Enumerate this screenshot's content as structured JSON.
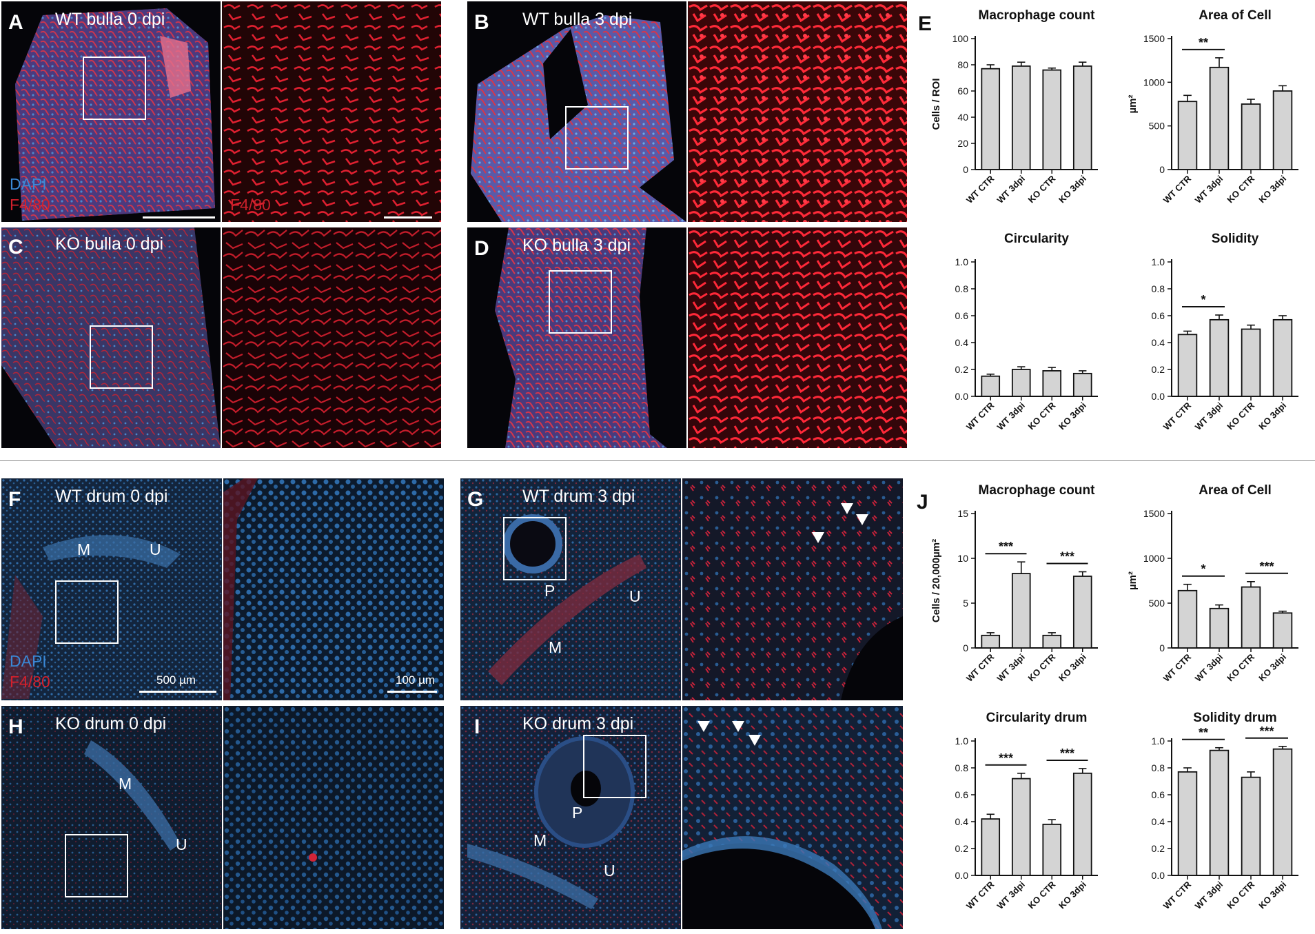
{
  "panels": [
    {
      "id": "A",
      "label": "A",
      "title": "WT bulla 0 dpi",
      "legend": true,
      "scale": true
    },
    {
      "id": "B",
      "label": "B",
      "title": "WT bulla 3 dpi"
    },
    {
      "id": "C",
      "label": "C",
      "title": "KO bulla 0 dpi"
    },
    {
      "id": "D",
      "label": "D",
      "title": "KO bulla 3 dpi"
    },
    {
      "id": "F",
      "label": "F",
      "title": "WT drum 0 dpi",
      "legend": true,
      "scale_left": "500 µm",
      "scale_right": "100 µm",
      "tags": [
        "M",
        "U"
      ]
    },
    {
      "id": "G",
      "label": "G",
      "title": "WT drum 3 dpi",
      "tags": [
        "P",
        "U",
        "M"
      ]
    },
    {
      "id": "H",
      "label": "H",
      "title": "KO drum 0 dpi",
      "tags": [
        "M",
        "U"
      ]
    },
    {
      "id": "I",
      "label": "I",
      "title": "KO drum 3 dpi",
      "tags": [
        "P",
        "M",
        "U"
      ]
    }
  ],
  "legend": {
    "dapi": "DAPI",
    "f480": "F4/80"
  },
  "side_letters": {
    "E": "E",
    "J": "J"
  },
  "colors": {
    "bar_fill": "#d4d4d4",
    "bar_stroke": "#111111",
    "dapi": "#3a88d6",
    "f480": "#d3202c"
  },
  "chart_data": [
    {
      "type": "bar",
      "panel": "E",
      "title": "Macrophage count",
      "ylabel": "Cells / ROI",
      "ylim": [
        0,
        100
      ],
      "yticks": [
        0,
        20,
        40,
        60,
        80,
        100
      ],
      "categories": [
        "WT CTR",
        "WT 3dpi",
        "KO CTR",
        "KO 3dpi"
      ],
      "values": [
        77,
        79,
        76,
        79
      ],
      "errors": [
        3,
        3,
        1.5,
        3
      ],
      "sig": []
    },
    {
      "type": "bar",
      "panel": "E",
      "title": "Area of Cell",
      "ylabel": "µm²",
      "ylim": [
        0,
        1500
      ],
      "yticks": [
        0,
        500,
        1000,
        1500
      ],
      "categories": [
        "WT CTR",
        "WT 3dpi",
        "KO CTR",
        "KO 3dpi"
      ],
      "values": [
        780,
        1170,
        750,
        900
      ],
      "errors": [
        70,
        110,
        55,
        60
      ],
      "sig": [
        {
          "from": 0,
          "to": 1,
          "label": "**"
        }
      ]
    },
    {
      "type": "bar",
      "panel": "E",
      "title": "Circularity",
      "ylabel": "",
      "ylim": [
        0,
        1.0
      ],
      "yticks": [
        0.0,
        0.2,
        0.4,
        0.6,
        0.8,
        1.0
      ],
      "categories": [
        "WT CTR",
        "WT 3dpi",
        "KO CTR",
        "KO 3dpi"
      ],
      "values": [
        0.15,
        0.2,
        0.19,
        0.17
      ],
      "errors": [
        0.015,
        0.02,
        0.025,
        0.02
      ],
      "sig": []
    },
    {
      "type": "bar",
      "panel": "E",
      "title": "Solidity",
      "ylabel": "",
      "ylim": [
        0,
        1.0
      ],
      "yticks": [
        0.0,
        0.2,
        0.4,
        0.6,
        0.8,
        1.0
      ],
      "categories": [
        "WT CTR",
        "WT 3dpi",
        "KO CTR",
        "KO 3dpi"
      ],
      "values": [
        0.46,
        0.57,
        0.5,
        0.57
      ],
      "errors": [
        0.025,
        0.035,
        0.03,
        0.03
      ],
      "sig": [
        {
          "from": 0,
          "to": 1,
          "label": "*"
        }
      ]
    },
    {
      "type": "bar",
      "panel": "J",
      "title": "Macrophage count",
      "ylabel": "Cells / 20,000µm²",
      "ylim": [
        0,
        15
      ],
      "yticks": [
        0,
        5,
        10,
        15
      ],
      "categories": [
        "WT CTR",
        "WT 3dpi",
        "KO CTR",
        "KO 3dpi"
      ],
      "values": [
        1.4,
        8.3,
        1.4,
        8.0
      ],
      "errors": [
        0.3,
        1.3,
        0.3,
        0.5
      ],
      "sig": [
        {
          "from": 0,
          "to": 1,
          "label": "***"
        },
        {
          "from": 2,
          "to": 3,
          "label": "***"
        }
      ]
    },
    {
      "type": "bar",
      "panel": "J",
      "title": "Area of Cell",
      "ylabel": "µm²",
      "ylim": [
        0,
        1500
      ],
      "yticks": [
        0,
        500,
        1000,
        1500
      ],
      "categories": [
        "WT CTR",
        "WT 3dpi",
        "KO CTR",
        "KO 3dpi"
      ],
      "values": [
        640,
        440,
        680,
        390
      ],
      "errors": [
        70,
        40,
        60,
        20
      ],
      "sig": [
        {
          "from": 0,
          "to": 1,
          "label": "*"
        },
        {
          "from": 2,
          "to": 3,
          "label": "***"
        }
      ]
    },
    {
      "type": "bar",
      "panel": "J",
      "title": "Circularity drum",
      "ylabel": "",
      "ylim": [
        0,
        1.0
      ],
      "yticks": [
        0.0,
        0.2,
        0.4,
        0.6,
        0.8,
        1.0
      ],
      "categories": [
        "WT CTR",
        "WT 3dpi",
        "KO CTR",
        "KO 3dpi"
      ],
      "values": [
        0.42,
        0.72,
        0.38,
        0.76
      ],
      "errors": [
        0.035,
        0.04,
        0.035,
        0.035
      ],
      "sig": [
        {
          "from": 0,
          "to": 1,
          "label": "***"
        },
        {
          "from": 2,
          "to": 3,
          "label": "***"
        }
      ]
    },
    {
      "type": "bar",
      "panel": "J",
      "title": "Solidity drum",
      "ylabel": "",
      "ylim": [
        0,
        1.0
      ],
      "yticks": [
        0.0,
        0.2,
        0.4,
        0.6,
        0.8,
        1.0
      ],
      "categories": [
        "WT CTR",
        "WT 3dpi",
        "KO CTR",
        "KO 3dpi"
      ],
      "values": [
        0.77,
        0.93,
        0.73,
        0.94
      ],
      "errors": [
        0.03,
        0.02,
        0.04,
        0.02
      ],
      "sig": [
        {
          "from": 0,
          "to": 1,
          "label": "**"
        },
        {
          "from": 2,
          "to": 3,
          "label": "***"
        }
      ]
    }
  ]
}
